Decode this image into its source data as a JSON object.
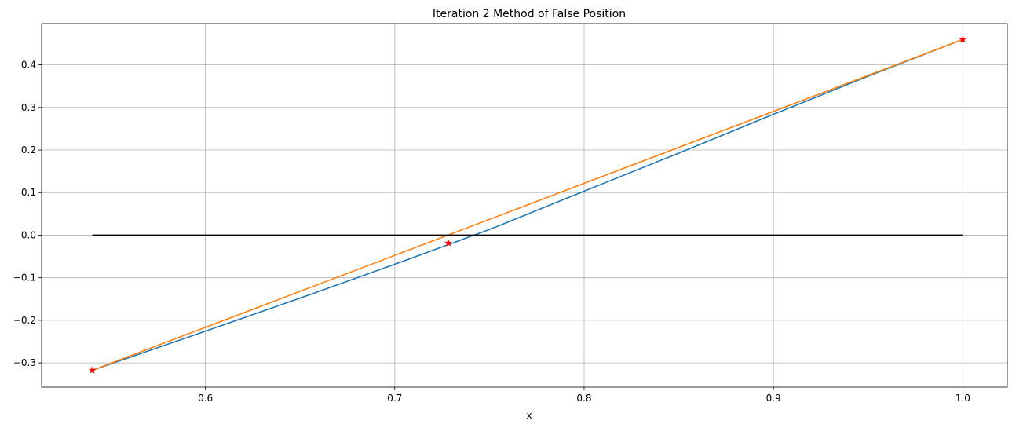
{
  "chart_data": {
    "type": "line",
    "title": "Iteration 2 Method of False Position",
    "xlabel": "x",
    "ylabel": "",
    "xlim": [
      0.5135,
      1.0235
    ],
    "ylim": [
      -0.357,
      0.497
    ],
    "grid": true,
    "x_ticks": [
      0.6,
      0.7,
      0.8,
      0.9,
      1.0
    ],
    "x_tick_labels": [
      "0.6",
      "0.7",
      "0.8",
      "0.9",
      "1.0"
    ],
    "y_ticks": [
      -0.3,
      -0.2,
      -0.1,
      0.0,
      0.1,
      0.2,
      0.3,
      0.4
    ],
    "y_tick_labels": [
      "−0.3",
      "−0.2",
      "−0.1",
      "0.0",
      "0.1",
      "0.2",
      "0.3",
      "0.4"
    ],
    "series": [
      {
        "color": "#1f77b4",
        "x": [
          0.5403,
          0.6,
          0.65,
          0.7,
          0.75,
          0.8,
          0.85,
          0.9,
          0.95,
          1.0
        ],
        "y": [
          -0.3174,
          -0.2256,
          -0.1478,
          -0.0684,
          0.0132,
          0.1033,
          0.1927,
          0.2839,
          0.3734,
          0.4597
        ]
      },
      {
        "color": "#ff7f0e",
        "x": [
          0.5403,
          1.0
        ],
        "y": [
          -0.3174,
          0.4597
        ]
      },
      {
        "color": "#000000",
        "x": [
          0.5403,
          1.0
        ],
        "y": [
          0.0,
          0.0
        ]
      }
    ],
    "points": {
      "color": "#ff0000",
      "marker": "star",
      "x": [
        0.5403,
        0.7283,
        1.0
      ],
      "y": [
        -0.3174,
        -0.0185,
        0.4597
      ]
    }
  }
}
